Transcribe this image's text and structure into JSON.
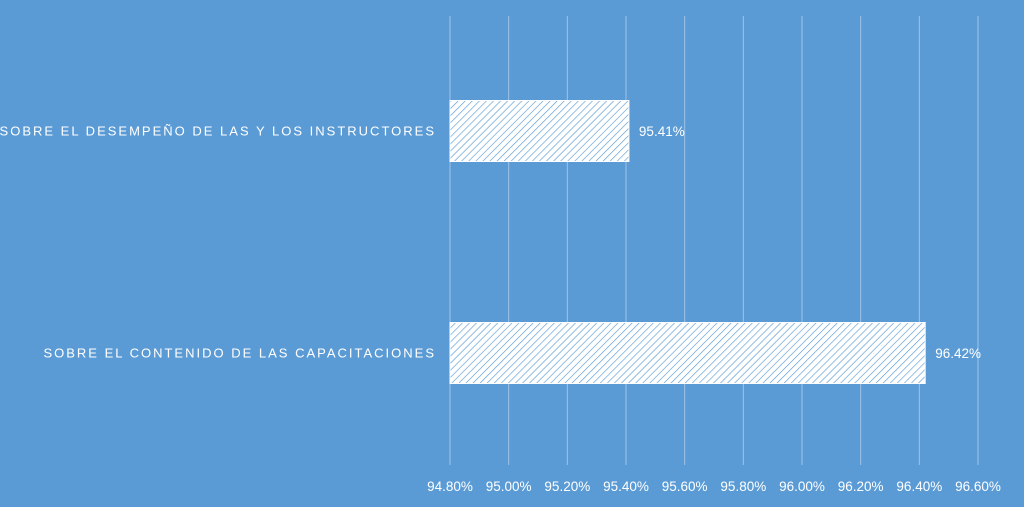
{
  "chart_data": {
    "type": "bar",
    "orientation": "horizontal",
    "categories": [
      "SOBRE EL DESEMPEÑO DE LAS Y LOS INSTRUCTORES",
      "SOBRE EL CONTENIDO DE LAS CAPACITACIONES"
    ],
    "values": [
      95.41,
      96.42
    ],
    "value_labels": [
      "95.41%",
      "96.42%"
    ],
    "xlim": [
      94.8,
      96.6
    ],
    "x_ticks": [
      "94.80%",
      "95.00%",
      "95.20%",
      "95.40%",
      "95.60%",
      "95.80%",
      "96.00%",
      "96.20%",
      "96.40%",
      "96.60%"
    ],
    "grid": true,
    "legend": "none",
    "bar_fill": "hatched",
    "colors": {
      "background": "#5b9bd5",
      "bar_fill": "#ffffff",
      "bar_hatch": "#5b9bd5",
      "gridline": "#9ec3e6",
      "text": "#ffffff"
    }
  }
}
